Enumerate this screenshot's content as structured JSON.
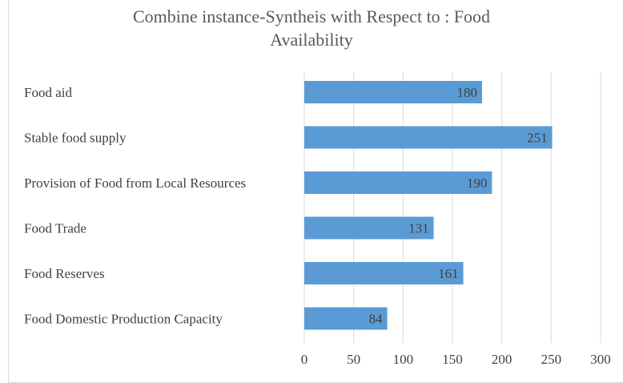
{
  "chart_data": {
    "type": "bar",
    "orientation": "horizontal",
    "title": "Combine instance-Syntheis with Respect to : Food Availability",
    "title_lines": [
      "Combine instance-Syntheis with Respect to : Food",
      "Availability"
    ],
    "categories": [
      "Food aid",
      "Stable food supply",
      "Provision of Food from Local Resources",
      "Food Trade",
      "Food Reserves",
      "Food Domestic Production Capacity"
    ],
    "values": [
      180,
      251,
      190,
      131,
      161,
      84
    ],
    "xlim": [
      0,
      300
    ],
    "xticks": [
      0,
      50,
      100,
      150,
      200,
      250,
      300
    ],
    "grid": "vertical",
    "legend": "none",
    "bar_color": "#5b9bd5"
  }
}
